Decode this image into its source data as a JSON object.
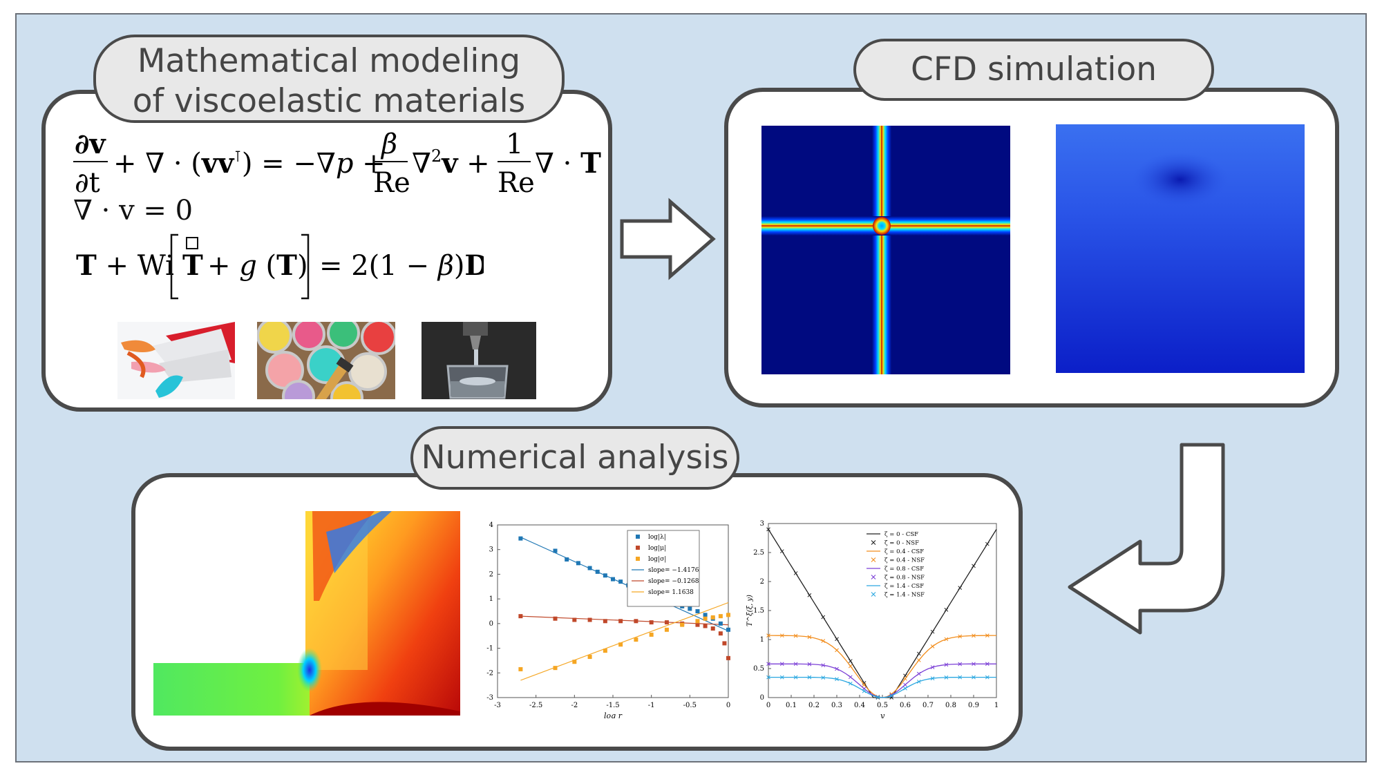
{
  "colors": {
    "frame_background": "#cfe0ef",
    "panel_border": "#4a4a4a",
    "pill_fill": "#e8e8e8",
    "jet_dark": "#000a80",
    "jet_red": "#c00000"
  },
  "modeling": {
    "title_line1": "Mathematical modeling",
    "title_line2": "of viscoelastic materials",
    "eq1": "∂v/∂t + ∇ · (vvᵀ) = −∇p + (β/Re)∇²v + (1/Re)∇ · T",
    "eq2": "∇ · v = 0",
    "eq3": "T + Wi [ T̊ + g (T) ] = 2(1 − β)D",
    "photos": [
      "toothpaste-photo",
      "paint-cans-photo",
      "beaker-jet-photo"
    ]
  },
  "cfd": {
    "title": "CFD simulation"
  },
  "analysis": {
    "title": "Numerical analysis"
  },
  "chart_data": [
    {
      "type": "heatmap",
      "title": "",
      "note": "stress contour field in an expansion/step geometry (no axes)"
    },
    {
      "type": "scatter",
      "xlabel": "log r",
      "ylabel": "",
      "xlim": [
        -3,
        0
      ],
      "ylim": [
        -3,
        4
      ],
      "xticks": [
        -3,
        -2.5,
        -2,
        -1.5,
        -1,
        -0.5,
        0
      ],
      "yticks": [
        -3,
        -2,
        -1,
        0,
        1,
        2,
        3,
        4
      ],
      "legend_position": "top-right",
      "series": [
        {
          "name": "log|λ|",
          "color": "#1f77b4",
          "x": [
            -2.7,
            -2.25,
            -2.1,
            -1.95,
            -1.8,
            -1.7,
            -1.6,
            -1.5,
            -1.4,
            -1.3,
            -1.2,
            -1.1,
            -1.0,
            -0.9,
            -0.8,
            -0.7,
            -0.6,
            -0.5,
            -0.4,
            -0.3,
            -0.2,
            -0.1,
            0
          ],
          "y": [
            3.45,
            2.95,
            2.6,
            2.45,
            2.25,
            2.1,
            1.95,
            1.8,
            1.7,
            1.55,
            1.4,
            1.3,
            1.15,
            1.0,
            0.9,
            0.8,
            0.7,
            0.6,
            0.5,
            0.35,
            0.2,
            0.0,
            -0.25
          ]
        },
        {
          "name": "log|μ|",
          "color": "#c0482a",
          "x": [
            -2.7,
            -2.25,
            -2.0,
            -1.8,
            -1.6,
            -1.4,
            -1.2,
            -1.0,
            -0.8,
            -0.6,
            -0.4,
            -0.3,
            -0.2,
            -0.1,
            -0.05,
            0
          ],
          "y": [
            0.3,
            0.2,
            0.15,
            0.15,
            0.1,
            0.1,
            0.1,
            0.05,
            0.05,
            0.0,
            -0.05,
            -0.1,
            -0.2,
            -0.4,
            -0.8,
            -1.4
          ]
        },
        {
          "name": "log|σ|",
          "color": "#f5a623",
          "x": [
            -2.7,
            -2.25,
            -2.0,
            -1.8,
            -1.6,
            -1.4,
            -1.2,
            -1.0,
            -0.8,
            -0.6,
            -0.4,
            -0.3,
            -0.2,
            -0.1,
            0
          ],
          "y": [
            -1.85,
            -1.8,
            -1.55,
            -1.35,
            -1.1,
            -0.85,
            -0.65,
            -0.45,
            -0.25,
            -0.05,
            0.1,
            0.2,
            0.25,
            0.3,
            0.35
          ]
        }
      ],
      "fit_lines": [
        {
          "name": "slope= −1.4176",
          "color": "#1f77b4",
          "x": [
            -2.7,
            0
          ],
          "y": [
            3.5,
            -0.3
          ]
        },
        {
          "name": "slope= −0.1268",
          "color": "#c0482a",
          "x": [
            -2.7,
            0
          ],
          "y": [
            0.3,
            -0.05
          ]
        },
        {
          "name": "slope= 1.1638",
          "color": "#f5a623",
          "x": [
            -2.7,
            0
          ],
          "y": [
            -2.3,
            0.85
          ]
        }
      ]
    },
    {
      "type": "line",
      "xlabel": "y",
      "ylabel": "T^ξ(ξ, y)",
      "xlim": [
        0,
        1
      ],
      "ylim": [
        0,
        3
      ],
      "xticks": [
        0,
        0.1,
        0.2,
        0.3,
        0.4,
        0.5,
        0.6,
        0.7,
        0.8,
        0.9,
        1
      ],
      "yticks": [
        0,
        0.5,
        1,
        1.5,
        2,
        2.5,
        3
      ],
      "legend_position": "top-center",
      "legend": [
        "ζ = 0 - CSF",
        "ζ = 0 - NSF",
        "ζ = 0.4 - CSF",
        "ζ = 0.4 - NSF",
        "ζ = 0.8 - CSF",
        "ζ = 0.8 - NSF",
        "ζ = 1.4 - CSF",
        "ζ = 1.4 - NSF"
      ],
      "series": [
        {
          "name": "ζ = 0",
          "color": "#222222",
          "peak": 2.9
        },
        {
          "name": "ζ = 0.4",
          "color": "#f28c1a",
          "peak": 1.07
        },
        {
          "name": "ζ = 0.8",
          "color": "#7b3fd6",
          "peak": 0.58
        },
        {
          "name": "ζ = 1.4",
          "color": "#2aa7e0",
          "peak": 0.35
        }
      ]
    }
  ]
}
